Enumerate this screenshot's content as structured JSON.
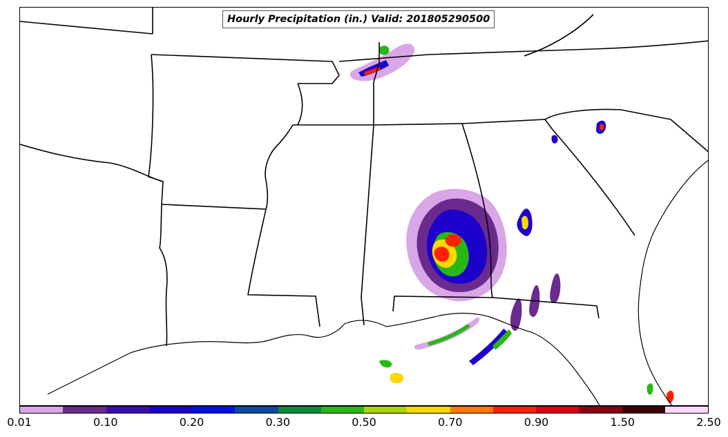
{
  "title": "Hourly Precipitation (in.) Valid: 201805290500",
  "colorbar": {
    "colors": [
      "#d9a6e8",
      "#6b2a8e",
      "#3a0fa8",
      "#1c00cc",
      "#0010f0",
      "#0a4ca0",
      "#0a8a3a",
      "#28b814",
      "#a8d40c",
      "#ffd800",
      "#ff7a00",
      "#ff2000",
      "#d80010",
      "#8a0010",
      "#3a0008",
      "#fcd8ff"
    ],
    "tick_labels": [
      "0.01",
      "0.10",
      "0.20",
      "0.30",
      "0.50",
      "0.70",
      "0.90",
      "1.50",
      "2.50"
    ]
  },
  "map": {
    "region": "Southeastern United States",
    "features": [
      "state-boundaries",
      "coastline",
      "precipitation-bands"
    ],
    "storm_center_state": "Alabama"
  }
}
